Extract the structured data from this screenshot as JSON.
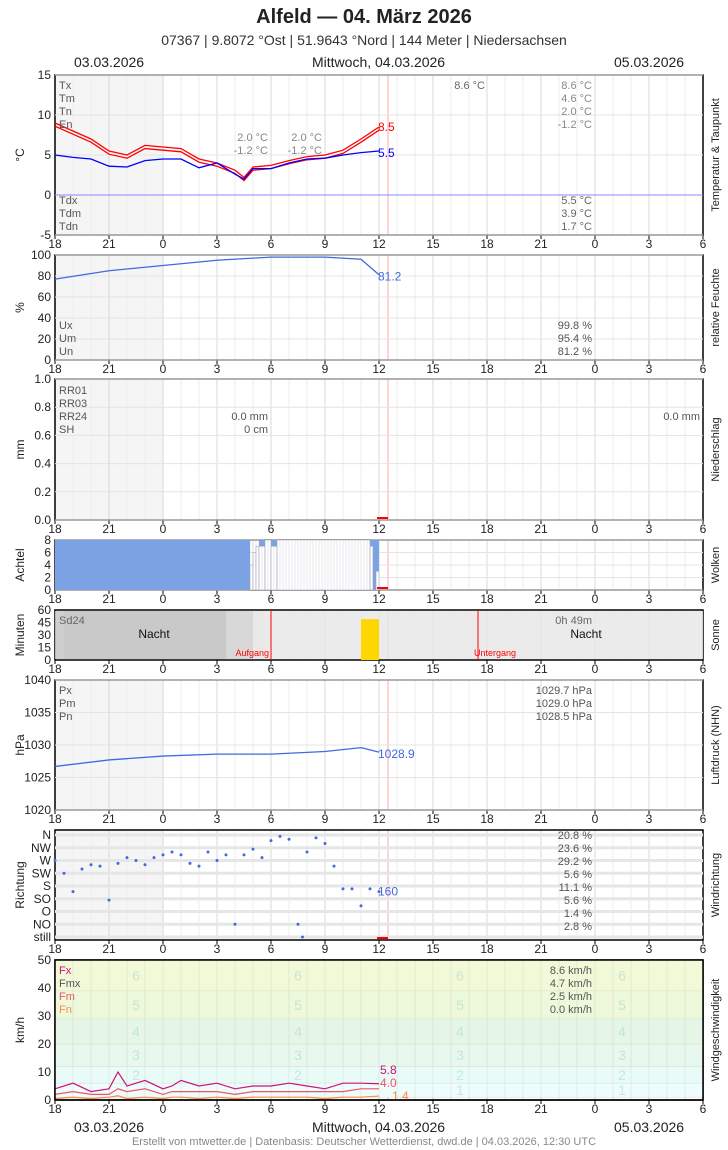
{
  "header": {
    "title": "Alfeld  —  04. März 2026",
    "subtitle": "07367  |  9.8072 °Ost  |  51.9643 °Nord  |  144 Meter  |  Niedersachsen",
    "date_left": "03.03.2026",
    "date_center": "Mittwoch, 04.03.2026",
    "date_right": "05.03.2026"
  },
  "footer": "Erstellt von mtwetter.de | Datenbasis: Deutscher Wetterdienst, dwd.de | 04.03.2026, 12:30 UTC",
  "colors": {
    "temp": "#ff0000",
    "dew": "#0000ff",
    "humidity": "#4169e1",
    "cloud": "#7aa3e8",
    "sun": "#ffd700",
    "now": "#ffaaaa",
    "night": "#c8c8c8"
  },
  "chart_data": [
    {
      "type": "line",
      "id": "temp",
      "ylabel": "°C",
      "side_label": "Temperatur & Taupunkt",
      "ylim": [
        -5,
        15
      ],
      "yticks": [
        15,
        10,
        5,
        0,
        -5
      ],
      "x": [
        "18",
        "19",
        "20",
        "21",
        "22",
        "23",
        "0",
        "1",
        "2",
        "3",
        "4",
        "4:30",
        "5",
        "6",
        "7",
        "8",
        "9",
        "10",
        "11",
        "12"
      ],
      "series": [
        {
          "key": "T",
          "values": [
            9.0,
            8.0,
            7.0,
            5.5,
            5.0,
            6.2,
            6.0,
            5.8,
            4.5,
            4.0,
            3.1,
            2.2,
            3.5,
            3.7,
            4.3,
            4.8,
            5.0,
            5.6,
            7.0,
            8.5
          ]
        },
        {
          "key": "Td",
          "values": [
            5.0,
            4.7,
            4.5,
            3.6,
            3.5,
            4.3,
            4.5,
            4.5,
            3.4,
            4.0,
            2.6,
            2.0,
            3.3,
            3.3,
            4.0,
            4.5,
            4.6,
            5.0,
            5.3,
            5.5
          ]
        }
      ],
      "last_labels": [
        "8.5",
        "5.5"
      ],
      "stats_left": [
        "Tx",
        "Tm",
        "Tn",
        "En"
      ],
      "stats_mid1": [
        "",
        "",
        "2.0 °C",
        "-1.2 °C"
      ],
      "stats_mid2": [
        "",
        "",
        "2.0 °C",
        "-1.2 °C"
      ],
      "stats_top_prev": "8.6 °C",
      "stats_right": [
        "8.6 °C",
        "4.6 °C",
        "2.0 °C",
        "-1.2 °C"
      ],
      "dew_left": [
        "Tdx",
        "Tdm",
        "Tdn"
      ],
      "dew_right": [
        "5.5 °C",
        "3.9 °C",
        "1.7 °C"
      ]
    },
    {
      "type": "line",
      "id": "hum",
      "ylabel": "%",
      "side_label": "relative Feuchte",
      "ylim": [
        0,
        100
      ],
      "yticks": [
        100,
        80,
        60,
        40,
        20,
        0
      ],
      "x": [
        "18",
        "21",
        "0",
        "3",
        "6",
        "9",
        "11",
        "12"
      ],
      "values": [
        77,
        85,
        90,
        95,
        98,
        98,
        96,
        81.2
      ],
      "last_label": "81.2",
      "stats_left": [
        "Ux",
        "Um",
        "Un"
      ],
      "stats_right": [
        "99.8 %",
        "95.4 %",
        "81.2 %"
      ]
    },
    {
      "type": "bar",
      "id": "rain",
      "ylabel": "mm",
      "side_label": "Niederschlag",
      "ylim": [
        0,
        1
      ],
      "yticks": [
        1.0,
        0.8,
        0.6,
        0.4,
        0.2,
        0.0
      ],
      "stats_left": [
        "RR01",
        "RR03",
        "RR24",
        "SH"
      ],
      "stats_mid": [
        "",
        "",
        "0.0 mm",
        "0 cm"
      ],
      "stats_right": "0.0 mm"
    },
    {
      "type": "bar",
      "id": "cloud",
      "ylabel": "Achtel",
      "side_label": "Wolken",
      "ylim": [
        0,
        8
      ],
      "yticks": [
        8,
        6,
        4,
        2,
        0
      ],
      "segments": [
        {
          "from": "18:00",
          "to": "4:50",
          "blue": 8,
          "gray": 0
        },
        {
          "from": "4:50",
          "to": "5:00",
          "blue": 0,
          "gray": 4
        },
        {
          "from": "5:00",
          "to": "5:10",
          "blue": 0,
          "gray": 6
        },
        {
          "from": "5:10",
          "to": "5:20",
          "blue": 0,
          "gray": 7
        },
        {
          "from": "5:20",
          "to": "5:40",
          "blue": 1,
          "gray": 7
        },
        {
          "from": "5:40",
          "to": "6:00",
          "blue": 0,
          "gray": 8
        },
        {
          "from": "6:00",
          "to": "6:20",
          "blue": 1,
          "gray": 7
        },
        {
          "from": "6:20",
          "to": "11:30",
          "blue": 0,
          "gray": 8
        },
        {
          "from": "11:30",
          "to": "11:40",
          "blue": 1,
          "gray": 7
        },
        {
          "from": "11:40",
          "to": "11:50",
          "blue": 8,
          "gray": 0
        },
        {
          "from": "11:50",
          "to": "12:00",
          "blue": 5,
          "gray": 3
        }
      ]
    },
    {
      "type": "bar",
      "id": "sun",
      "ylabel": "Minuten",
      "side_label": "Sonne",
      "ylim": [
        0,
        60
      ],
      "yticks": [
        60,
        45,
        15,
        0
      ],
      "ytick_labels": [
        "60",
        "45",
        "30",
        "15",
        "0"
      ],
      "sun_bar": {
        "from": "11:00",
        "to": "12:00",
        "minutes": 49
      },
      "sunrise": "6:00",
      "sunset": "17:30",
      "label_sd": "Sd24",
      "label_sd_value": "0h 49m",
      "night": "Nacht",
      "rise_label": "Aufgang",
      "set_label": "Untergang"
    },
    {
      "type": "line",
      "id": "press",
      "ylabel": "hPa",
      "side_label": "Luftdruck (NHN)",
      "ylim": [
        1020,
        1040
      ],
      "yticks": [
        1040,
        1035,
        1030,
        1025,
        1020
      ],
      "x": [
        "18",
        "21",
        "0",
        "3",
        "6",
        "9",
        "11",
        "12"
      ],
      "values": [
        1026.7,
        1027.7,
        1028.3,
        1028.6,
        1028.6,
        1029.0,
        1029.6,
        1028.9
      ],
      "last_label": "1028.9",
      "stats_left": [
        "Px",
        "Pm",
        "Pn"
      ],
      "stats_right": [
        "1029.7 hPa",
        "1029.0 hPa",
        "1028.5 hPa"
      ]
    },
    {
      "type": "scatter",
      "id": "dir",
      "ylabel": "Richtung",
      "side_label": "Windrichtung",
      "yticks": [
        "N",
        "NW",
        "W",
        "SW",
        "S",
        "SO",
        "O",
        "NO",
        "still"
      ],
      "x": [
        "18:00",
        "18:30",
        "19:00",
        "19:30",
        "20:00",
        "20:30",
        "21:00",
        "21:30",
        "22:00",
        "22:30",
        "23:00",
        "23:30",
        "0:00",
        "0:30",
        "1:00",
        "1:30",
        "2:00",
        "2:30",
        "3:00",
        "3:30",
        "4:00",
        "4:30",
        "5:00",
        "5:30",
        "6:00",
        "6:30",
        "7:00",
        "7:30",
        "7:45",
        "8:00",
        "8:30",
        "9:00",
        "9:30",
        "10:00",
        "10:30",
        "11:00",
        "11:30",
        "12:00"
      ],
      "values": [
        270,
        225,
        160,
        240,
        255,
        250,
        130,
        260,
        280,
        270,
        255,
        280,
        290,
        300,
        290,
        260,
        250,
        300,
        270,
        290,
        45,
        290,
        310,
        280,
        340,
        355,
        345,
        45,
        20,
        300,
        350,
        330,
        250,
        170,
        170,
        110,
        170,
        160
      ],
      "last_label": "160",
      "shares": [
        "20.8 %",
        "23.6 %",
        "29.2 %",
        "5.6 %",
        "11.1 %",
        "5.6 %",
        "1.4 %",
        "2.8 %"
      ]
    },
    {
      "type": "line",
      "id": "wind",
      "ylabel": "km/h",
      "side_label": "Windgeschwindigkeit",
      "ylim": [
        0,
        50
      ],
      "yticks": [
        50,
        40,
        30,
        20,
        10,
        0
      ],
      "x": [
        "18",
        "19",
        "20",
        "21",
        "21:30",
        "22",
        "23",
        "0",
        "0:30",
        "1",
        "2",
        "3",
        "4",
        "5",
        "6",
        "7",
        "8",
        "9",
        "10",
        "11",
        "12"
      ],
      "series": [
        {
          "key": "Fx",
          "values": [
            4,
            6,
            3,
            4,
            10,
            5,
            7,
            4,
            5,
            7,
            5,
            6,
            4,
            5,
            5,
            6,
            5,
            4,
            6,
            6,
            5.8
          ]
        },
        {
          "key": "Fm",
          "values": [
            2,
            3,
            2,
            2,
            4,
            3,
            4,
            2,
            3,
            3,
            3,
            3,
            2,
            3,
            3,
            3,
            3,
            3,
            3,
            4,
            4.0
          ]
        },
        {
          "key": "Fn",
          "values": [
            0.5,
            1,
            0.5,
            1,
            1.5,
            0.5,
            1,
            0.5,
            1,
            1,
            0.5,
            1,
            0.5,
            1,
            1,
            1,
            1,
            0.5,
            1,
            1,
            1.4
          ]
        }
      ],
      "last_labels": [
        "5.8",
        "4.0",
        "1.4"
      ],
      "stats_left": [
        "Fx",
        "Fmx",
        "Fm",
        "Fn"
      ],
      "stats_right": [
        "8.6 km/h",
        "4.7 km/h",
        "2.5 km/h",
        "0.0 km/h"
      ],
      "beaufort": [
        "1",
        "2",
        "3",
        "4",
        "5",
        "6"
      ]
    }
  ],
  "xaxis": {
    "ticks": [
      "18",
      "21",
      "0",
      "3",
      "6",
      "9",
      "12",
      "15",
      "18",
      "21",
      "0",
      "3",
      "6"
    ]
  }
}
